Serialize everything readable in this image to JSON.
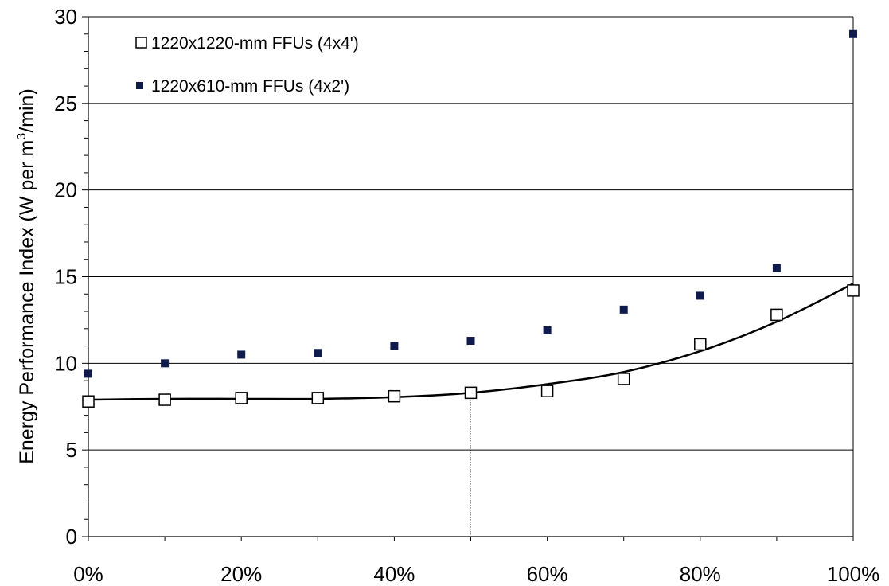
{
  "chart_data": {
    "type": "scatter",
    "title": "",
    "xlabel": "",
    "ylabel": "Energy Performance Index (W per m",
    "ylabel_sup": "3",
    "ylabel_tail": "/min)",
    "xlim": [
      0,
      1
    ],
    "ylim": [
      0,
      30
    ],
    "x_ticks": [
      "0%",
      "20%",
      "40%",
      "60%",
      "80%",
      "100%"
    ],
    "x_tick_values": [
      0,
      0.2,
      0.4,
      0.6,
      0.8,
      1.0
    ],
    "y_ticks": [
      "0",
      "5",
      "10",
      "15",
      "20",
      "25",
      "30"
    ],
    "y_tick_values": [
      0,
      5,
      10,
      15,
      20,
      25,
      30
    ],
    "grid": "horizontal",
    "legend_position": "top-left",
    "reference_line_x": 0.5,
    "series": [
      {
        "name": "1220x1220-mm FFUs (4x4')",
        "marker": "open-square",
        "color": "#000000",
        "x": [
          0,
          0.1,
          0.2,
          0.3,
          0.4,
          0.5,
          0.6,
          0.7,
          0.8,
          0.9,
          1.0
        ],
        "y": [
          7.8,
          7.9,
          8.0,
          8.0,
          8.1,
          8.3,
          8.4,
          9.1,
          11.1,
          12.8,
          14.2
        ]
      },
      {
        "name": "1220x610-mm FFUs (4x2')",
        "marker": "filled-square",
        "color": "#0f1a4d",
        "x": [
          0,
          0.1,
          0.2,
          0.3,
          0.4,
          0.5,
          0.6,
          0.7,
          0.8,
          0.9,
          1.0
        ],
        "y": [
          9.4,
          10.0,
          10.5,
          10.6,
          11.0,
          11.3,
          11.9,
          13.1,
          13.9,
          15.5,
          29.0
        ]
      }
    ],
    "trendline": {
      "type": "polynomial",
      "x": [
        0,
        0.1,
        0.2,
        0.3,
        0.4,
        0.5,
        0.6,
        0.7,
        0.8,
        0.9,
        1.0
      ],
      "y": [
        7.9,
        7.95,
        7.95,
        7.95,
        8.05,
        8.3,
        8.8,
        9.5,
        10.7,
        12.4,
        14.6
      ]
    }
  }
}
